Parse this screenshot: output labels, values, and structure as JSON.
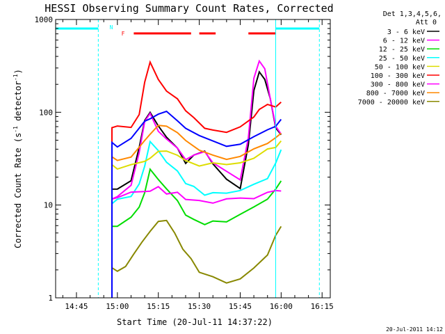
{
  "chart_data": {
    "type": "line",
    "title": "HESSI Observing Summary Count Rates, Corrected",
    "xlabel": "Start Time (20-Jul-11 14:37:22)",
    "ylabel": "Corrected Count Rate (s^-1 detector^-1)",
    "ylabel_main": "Corrected Count Rate (s",
    "ylabel_sup1": "-1",
    "ylabel_mid": " detector",
    "ylabel_sup2": "-1",
    "ylabel_end": ")",
    "y_scale": "log",
    "ylim": [
      1,
      1000
    ],
    "xlim": [
      "14:37:22",
      "16:18:00"
    ],
    "x_ticks": [
      "14:45",
      "15:00",
      "15:15",
      "15:30",
      "15:45",
      "16:00",
      "16:15"
    ],
    "y_ticks": [
      "1",
      "10",
      "100",
      "1000"
    ],
    "timestamp": "20-Jul-2011 14:12",
    "legend": {
      "header1": "Det 1,3,4,5,6,",
      "header2": "Att 0",
      "placement": "right"
    },
    "flags": {
      "N_label": "N",
      "F_label": "F",
      "night_segments": [
        [
          "14:37",
          "14:53"
        ],
        [
          "15:58",
          "16:14"
        ]
      ],
      "flare_segments": [
        [
          "15:06",
          "15:27"
        ],
        [
          "15:30",
          "15:36"
        ],
        [
          "15:48",
          "15:58"
        ]
      ]
    },
    "markers": {
      "dashed_lines": [
        "14:53",
        "16:14"
      ],
      "solid_lines": [
        "15:58"
      ]
    },
    "series": [
      {
        "name": "3 - 6 keV",
        "color": "#000000",
        "x": [
          "14:58",
          "15:00",
          "15:05",
          "15:08",
          "15:10",
          "15:12",
          "15:15",
          "15:18",
          "15:22",
          "15:25",
          "15:28",
          "15:32",
          "15:35",
          "15:40",
          "15:45",
          "15:48",
          "15:50",
          "15:52",
          "15:54",
          "15:56",
          "15:58",
          "16:00"
        ],
        "y": [
          14,
          15,
          18,
          40,
          85,
          105,
          68,
          52,
          40,
          29,
          33,
          36,
          28,
          20,
          16,
          45,
          170,
          280,
          240,
          140,
          70,
          55
        ]
      },
      {
        "name": "6 - 12 keV",
        "color": "#ff00ff",
        "x": [
          "14:58",
          "15:00",
          "15:05",
          "15:08",
          "15:10",
          "15:12",
          "15:15",
          "15:18",
          "15:22",
          "15:25",
          "15:28",
          "15:32",
          "15:35",
          "15:40",
          "15:45",
          "15:48",
          "15:50",
          "15:52",
          "15:54",
          "15:56",
          "15:58",
          "16:00"
        ],
        "y": [
          12,
          13,
          17,
          35,
          75,
          95,
          65,
          50,
          40,
          30,
          36,
          38,
          30,
          22,
          18,
          55,
          230,
          370,
          280,
          140,
          75,
          60
        ]
      },
      {
        "name": "12 - 25 keV",
        "color": "#00dd00",
        "x": [
          "14:58",
          "15:00",
          "15:05",
          "15:08",
          "15:10",
          "15:12",
          "15:15",
          "15:18",
          "15:22",
          "15:25",
          "15:28",
          "15:32",
          "15:35",
          "15:40",
          "15:45",
          "15:50",
          "15:55",
          "15:58",
          "16:00"
        ],
        "y": [
          6,
          6,
          7,
          9,
          14,
          25,
          20,
          15,
          11,
          8,
          7,
          6,
          6.5,
          7,
          8,
          9,
          11,
          14,
          18
        ]
      },
      {
        "name": "25 - 50 keV",
        "color": "#00ffff",
        "x": [
          "14:58",
          "15:00",
          "15:05",
          "15:08",
          "15:10",
          "15:12",
          "15:15",
          "15:18",
          "15:22",
          "15:25",
          "15:28",
          "15:32",
          "15:35",
          "15:40",
          "15:45",
          "15:50",
          "15:55",
          "15:58",
          "16:00"
        ],
        "y": [
          11,
          11,
          12,
          16,
          25,
          50,
          40,
          30,
          22,
          17,
          15,
          13,
          13,
          14,
          15,
          17,
          20,
          28,
          40
        ]
      },
      {
        "name": "50 - 100 keV",
        "color": "#dddd00",
        "x": [
          "14:58",
          "15:00",
          "15:05",
          "15:10",
          "15:12",
          "15:15",
          "15:18",
          "15:22",
          "15:25",
          "15:30",
          "15:35",
          "15:40",
          "15:45",
          "15:50",
          "15:55",
          "15:58",
          "16:00"
        ],
        "y": [
          26,
          26,
          27,
          30,
          34,
          38,
          36,
          33,
          30,
          28,
          27,
          28,
          30,
          33,
          38,
          44,
          48
        ]
      },
      {
        "name": "100 - 300 keV",
        "color": "#ff0000",
        "x": [
          "14:58",
          "15:00",
          "15:05",
          "15:08",
          "15:10",
          "15:12",
          "15:15",
          "15:18",
          "15:22",
          "15:25",
          "15:28",
          "15:32",
          "15:35",
          "15:40",
          "15:45",
          "15:50",
          "15:52",
          "15:55",
          "15:58",
          "16:00"
        ],
        "y": [
          65,
          67,
          72,
          100,
          200,
          340,
          240,
          180,
          140,
          110,
          85,
          70,
          66,
          64,
          68,
          85,
          110,
          115,
          110,
          125
        ]
      },
      {
        "name": "300 - 800 keV",
        "color": "#ff00ff",
        "x": [
          "14:58",
          "15:00",
          "15:05",
          "15:10",
          "15:12",
          "15:15",
          "15:18",
          "15:22",
          "15:25",
          "15:30",
          "15:35",
          "15:40",
          "15:45",
          "15:50",
          "15:55",
          "15:58",
          "16:00"
        ],
        "y": [
          12,
          12,
          13,
          14,
          15,
          15,
          14,
          13,
          12,
          11,
          11,
          11,
          12,
          12,
          13,
          14,
          15
        ]
      },
      {
        "name": "800 - 7000 keV",
        "color": "#ff8800",
        "x": [
          "14:58",
          "15:00",
          "15:05",
          "15:10",
          "15:12",
          "15:15",
          "15:18",
          "15:22",
          "15:25",
          "15:30",
          "15:35",
          "15:40",
          "15:45",
          "15:50",
          "15:55",
          "15:58",
          "16:00"
        ],
        "y": [
          32,
          32,
          35,
          48,
          60,
          70,
          67,
          57,
          47,
          37,
          33,
          33,
          35,
          40,
          48,
          55,
          60
        ]
      },
      {
        "name": "7000 - 20000 keV",
        "color": "#888800",
        "x": [
          "14:58",
          "15:00",
          "15:03",
          "15:06",
          "15:09",
          "15:12",
          "15:15",
          "15:18",
          "15:21",
          "15:24",
          "15:27",
          "15:30",
          "15:35",
          "15:40",
          "15:45",
          "15:50",
          "15:55",
          "15:58",
          "16:00"
        ],
        "y": [
          2,
          2,
          2.2,
          2.8,
          4,
          5.5,
          7,
          6.5,
          5,
          3.5,
          2.5,
          2,
          1.6,
          1.5,
          1.6,
          2,
          3,
          5,
          6
        ]
      },
      {
        "name": "",
        "color": "#0000ff",
        "legend": false,
        "x": [
          "14:58",
          "15:00",
          "15:05",
          "15:10",
          "15:12",
          "15:15",
          "15:18",
          "15:22",
          "15:25",
          "15:30",
          "15:35",
          "15:40",
          "15:45",
          "15:50",
          "15:55",
          "15:58",
          "16:00"
        ],
        "y": [
          45,
          45,
          50,
          80,
          90,
          100,
          98,
          85,
          68,
          55,
          47,
          45,
          48,
          56,
          67,
          75,
          80
        ]
      }
    ]
  }
}
